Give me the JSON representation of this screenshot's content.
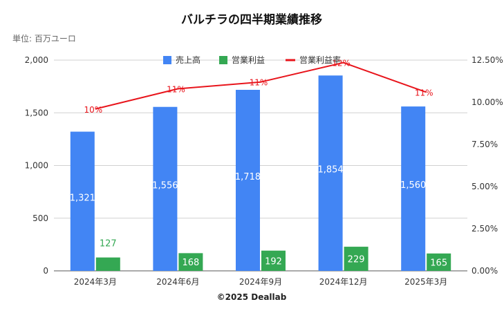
{
  "chart_data": {
    "type": "bar",
    "title": "バルチラの四半期業績推移",
    "unit_label": "単位: 百万ユーロ",
    "categories": [
      "2024年3月",
      "2024年6月",
      "2024年9月",
      "2024年12月",
      "2025年3月"
    ],
    "series": [
      {
        "name": "売上高",
        "type": "bar",
        "axis": "left",
        "color": "#4285f4",
        "values": [
          1321,
          1556,
          1718,
          1854,
          1560
        ],
        "labels": [
          "1,321",
          "1,556",
          "1,718",
          "1,854",
          "1,560"
        ]
      },
      {
        "name": "営業利益",
        "type": "bar",
        "axis": "left",
        "color": "#34a853",
        "values": [
          127,
          168,
          192,
          229,
          165
        ],
        "labels": [
          "127",
          "168",
          "192",
          "229",
          "165"
        ]
      },
      {
        "name": "営業利益率",
        "type": "line",
        "axis": "right",
        "color": "#e8141b",
        "values": [
          9.6,
          10.8,
          11.2,
          12.35,
          10.6
        ],
        "labels": [
          "10%",
          "11%",
          "11%",
          "12%",
          "11%"
        ]
      }
    ],
    "y_left": {
      "ylim": [
        0,
        2000
      ],
      "ticks": [
        "0",
        "500",
        "1,000",
        "1,500",
        "2,000"
      ]
    },
    "y_right": {
      "ylim": [
        0,
        12.5
      ],
      "ticks": [
        "0.00%",
        "2.50%",
        "5.00%",
        "7.50%",
        "10.00%",
        "12.50%"
      ]
    },
    "grid": true,
    "legend_position": "top-center",
    "credit": "©2025 Deallab"
  }
}
